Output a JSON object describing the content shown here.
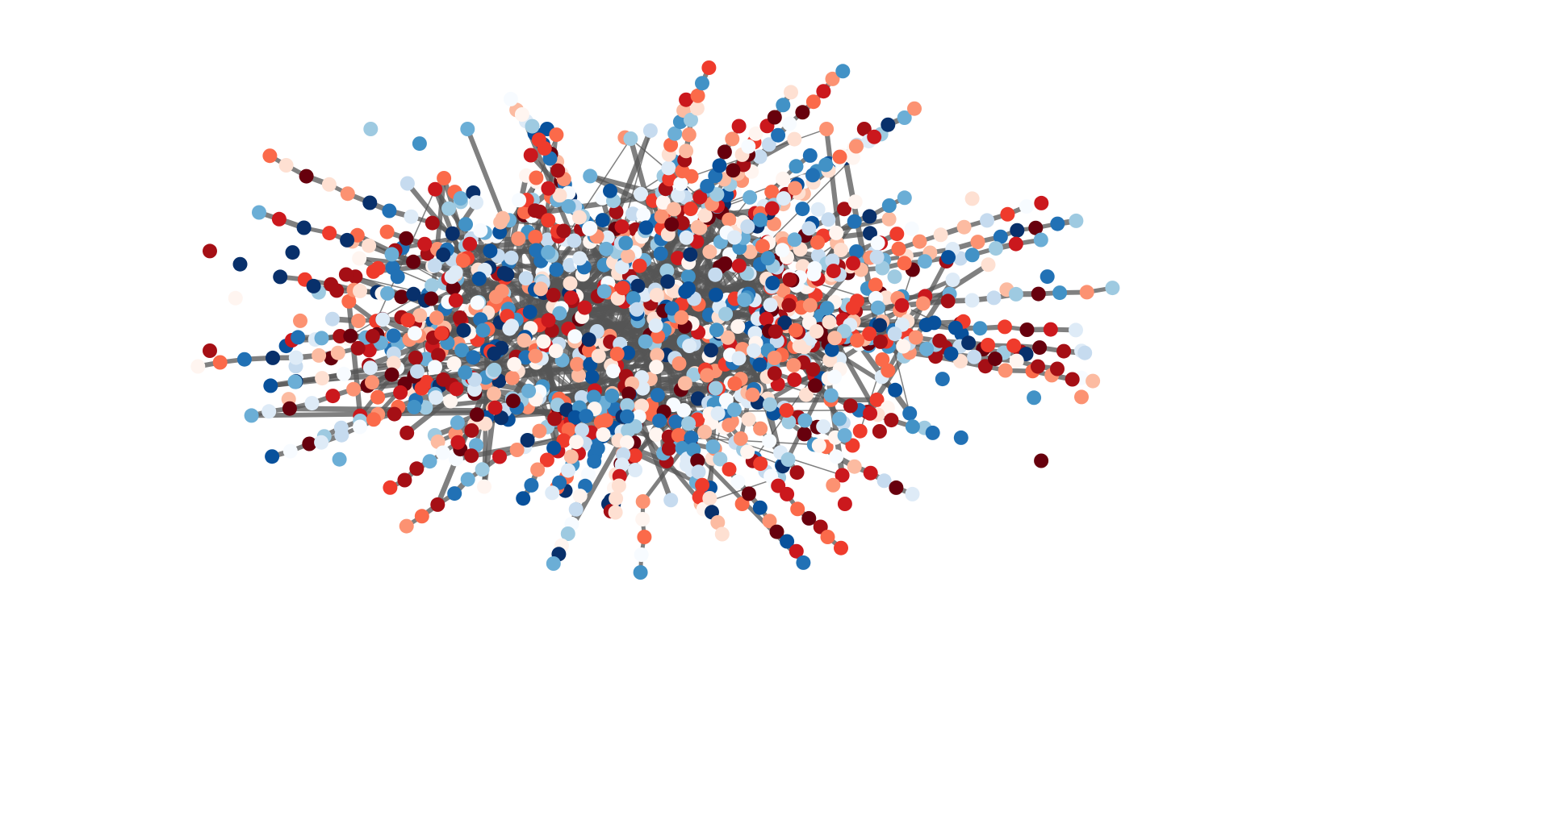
{
  "figure": {
    "type": "network-graph",
    "background": "#ffffff",
    "edge_color": "#555555",
    "node_colormaps": [
      "Blues",
      "Reds"
    ],
    "palette": {
      "blues": [
        "#f7fbff",
        "#deebf7",
        "#c6dbef",
        "#9ecae1",
        "#6baed6",
        "#4292c6",
        "#2171b5",
        "#08519c",
        "#08306b"
      ],
      "reds": [
        "#fff5f0",
        "#fee0d2",
        "#fcbba1",
        "#fc9272",
        "#fb6a4a",
        "#ef3b2c",
        "#cb181d",
        "#a50f15",
        "#67000d"
      ]
    },
    "approx_node_count": 900,
    "axes_visible": false
  }
}
